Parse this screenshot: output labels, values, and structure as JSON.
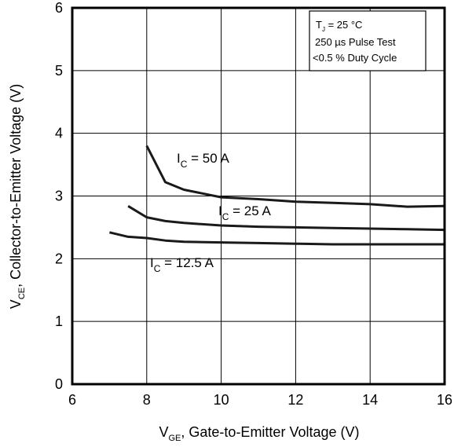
{
  "chart_data": {
    "type": "line",
    "xlabel": {
      "main": "V",
      "sub": "GE",
      "rest": ", Gate-to-Emitter Voltage (V)"
    },
    "ylabel": {
      "main": "V",
      "sub": "CE",
      "rest": ", Collector-to-Emitter Voltage (V)"
    },
    "xlim": [
      6,
      16
    ],
    "ylim": [
      0,
      6
    ],
    "xticks": [
      6,
      8,
      10,
      12,
      14,
      16
    ],
    "yticks": [
      0,
      1,
      2,
      3,
      4,
      5,
      6
    ],
    "grid": true,
    "legend_box": {
      "line1": {
        "main": "T",
        "sub": "J",
        "rest": " = 25 °C"
      },
      "line2": "250 µs Pulse Test",
      "line3": "<0.5 % Duty Cycle"
    },
    "series": [
      {
        "label": {
          "main": "I",
          "sub": "C",
          "rest": " = 50 A"
        },
        "x": [
          8.0,
          8.5,
          9.0,
          10.0,
          11.0,
          12.0,
          13.0,
          14.0,
          15.0,
          16.0
        ],
        "y": [
          3.8,
          3.22,
          3.1,
          2.98,
          2.95,
          2.91,
          2.89,
          2.87,
          2.83,
          2.84
        ]
      },
      {
        "label": {
          "main": "I",
          "sub": "C",
          "rest": " = 25 A"
        },
        "x": [
          7.5,
          8.0,
          8.5,
          9.0,
          10.0,
          11.0,
          12.0,
          13.0,
          14.0,
          15.0,
          16.0
        ],
        "y": [
          2.84,
          2.66,
          2.6,
          2.57,
          2.53,
          2.51,
          2.5,
          2.49,
          2.48,
          2.47,
          2.46
        ]
      },
      {
        "label": {
          "main": "I",
          "sub": "C",
          "rest": " = 12.5 A"
        },
        "x": [
          7.0,
          7.5,
          8.0,
          8.5,
          9.0,
          10.0,
          11.0,
          12.0,
          13.0,
          14.0,
          15.0,
          16.0
        ],
        "y": [
          2.42,
          2.35,
          2.33,
          2.29,
          2.27,
          2.26,
          2.25,
          2.24,
          2.23,
          2.23,
          2.23,
          2.23
        ]
      }
    ]
  }
}
